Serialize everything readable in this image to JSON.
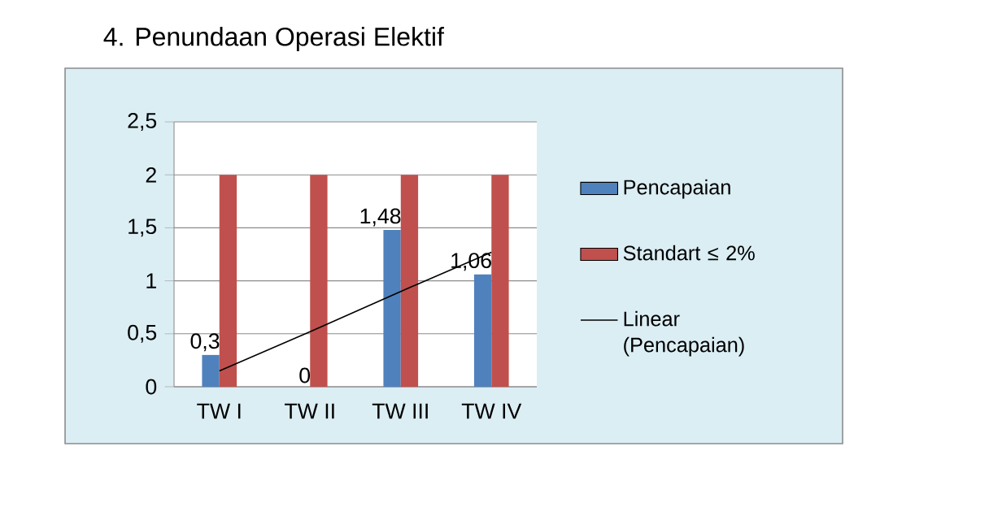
{
  "chart_data": {
    "type": "bar",
    "title": "4. Penundaan Operasi Elektif",
    "categories": [
      "TW I",
      "TW II",
      "TW III",
      "TW IV"
    ],
    "series": [
      {
        "name": "Pencapaian",
        "color": "#4f81bd",
        "values": [
          0.3,
          0,
          1.48,
          1.06
        ],
        "value_labels": [
          "0,3",
          "0",
          "1,48",
          "1,06"
        ]
      },
      {
        "name": "Standart ≤ 2%",
        "color": "#c0504d",
        "values": [
          2,
          2,
          2,
          2
        ]
      },
      {
        "name": "Linear (Pencapaian)",
        "type": "line",
        "color": "#000000",
        "values": [
          0.15,
          0.52,
          0.9,
          1.27
        ]
      }
    ],
    "ylim": [
      0,
      2.5
    ],
    "yticks": [
      0,
      {
        "value": 0.5,
        "label": "0,5"
      },
      1,
      {
        "value": 1.5,
        "label": "1,5"
      },
      2,
      {
        "value": 2.5,
        "label": "2,5"
      }
    ],
    "grid": "y",
    "legend": "right",
    "marker": "none"
  }
}
